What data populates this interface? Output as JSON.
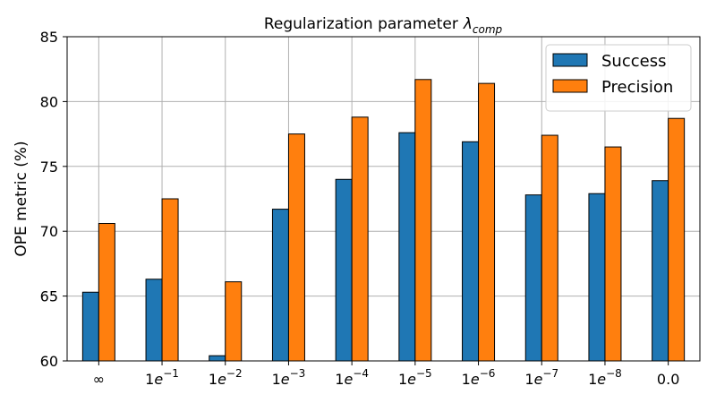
{
  "chart_data": {
    "type": "bar",
    "title": "Regularization parameter",
    "title_symbol": "λ",
    "title_subscript": "comp",
    "xlabel": "",
    "ylabel": "OPE metric (%)",
    "ylim": [
      60,
      85
    ],
    "yticks": [
      60,
      65,
      70,
      75,
      80,
      85
    ],
    "grid": true,
    "legend_position": "top-right",
    "categories": [
      {
        "base": "∞",
        "sup": ""
      },
      {
        "base": "1e",
        "sup": "−1"
      },
      {
        "base": "1e",
        "sup": "−2"
      },
      {
        "base": "1e",
        "sup": "−3"
      },
      {
        "base": "1e",
        "sup": "−4"
      },
      {
        "base": "1e",
        "sup": "−5"
      },
      {
        "base": "1e",
        "sup": "−6"
      },
      {
        "base": "1e",
        "sup": "−7"
      },
      {
        "base": "1e",
        "sup": "−8"
      },
      {
        "base": "0.0",
        "sup": ""
      }
    ],
    "series": [
      {
        "name": "Success",
        "color": "#1f77b4",
        "values": [
          65.3,
          66.3,
          60.4,
          71.7,
          74.0,
          77.6,
          76.9,
          72.8,
          72.9,
          73.9
        ]
      },
      {
        "name": "Precision",
        "color": "#ff7f0e",
        "values": [
          70.6,
          72.5,
          66.1,
          77.5,
          78.8,
          81.7,
          81.4,
          77.4,
          76.5,
          78.7
        ]
      }
    ]
  }
}
